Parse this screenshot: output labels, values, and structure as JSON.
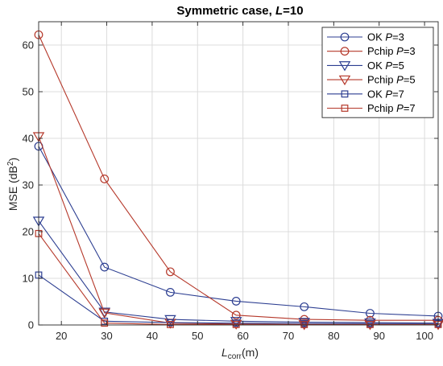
{
  "chart_data": {
    "type": "line",
    "title": {
      "main": "Symmetric case, ",
      "italic": "L",
      "rest": "=10"
    },
    "xlabel": {
      "italic": "L",
      "sub": "corr",
      "unit": "(m)"
    },
    "ylabel": {
      "text": "MSE (dB",
      "sup": "2",
      "close": ")"
    },
    "xlim": [
      15,
      103
    ],
    "ylim": [
      0,
      65
    ],
    "xticks": [
      20,
      30,
      40,
      50,
      60,
      70,
      80,
      90,
      100
    ],
    "yticks": [
      0,
      10,
      20,
      30,
      40,
      50,
      60
    ],
    "grid": true,
    "legend_position": "top-right",
    "x": [
      15,
      29.5,
      44,
      58.5,
      73.5,
      88,
      103
    ],
    "series": [
      {
        "name": "OK P=3",
        "label_pre": "OK ",
        "label_var": "P",
        "label_post": "=3",
        "marker": "circle",
        "color": "#2c3e91",
        "values": [
          38.3,
          12.4,
          7.0,
          5.1,
          3.9,
          2.5,
          1.9
        ]
      },
      {
        "name": "Pchip P=3",
        "label_pre": "Pchip ",
        "label_var": "P",
        "label_post": "=3",
        "marker": "circle",
        "color": "#b5382a",
        "values": [
          62.2,
          31.3,
          11.4,
          2.1,
          1.2,
          1.0,
          1.0
        ]
      },
      {
        "name": "OK P=5",
        "label_pre": "OK ",
        "label_var": "P",
        "label_post": "=5",
        "marker": "triangle-down",
        "color": "#2c3e91",
        "values": [
          22.3,
          2.8,
          1.2,
          0.8,
          0.6,
          0.5,
          0.4
        ]
      },
      {
        "name": "Pchip P=5",
        "label_pre": "Pchip ",
        "label_var": "P",
        "label_post": "=5",
        "marker": "triangle-down",
        "color": "#b5382a",
        "values": [
          40.4,
          2.6,
          0.4,
          0.2,
          0.1,
          0.1,
          0.1
        ]
      },
      {
        "name": "OK P=7",
        "label_pre": "OK ",
        "label_var": "P",
        "label_post": "=7",
        "marker": "square",
        "color": "#2c3e91",
        "values": [
          10.7,
          0.8,
          0.5,
          0.4,
          0.3,
          0.3,
          0.3
        ]
      },
      {
        "name": "Pchip P=7",
        "label_pre": "Pchip ",
        "label_var": "P",
        "label_post": "=7",
        "marker": "square",
        "color": "#b5382a",
        "values": [
          19.6,
          0.4,
          0.1,
          0.1,
          0.1,
          0.1,
          0.1
        ]
      }
    ]
  }
}
